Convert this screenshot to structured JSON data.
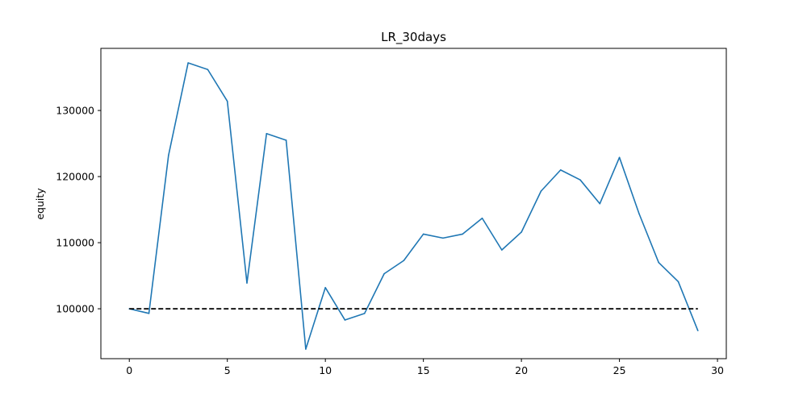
{
  "chart_data": {
    "type": "line",
    "title": "LR_30days",
    "xlabel": "",
    "ylabel": "equity",
    "xlim": [
      -1.45,
      30.45
    ],
    "ylim": [
      92450,
      139400
    ],
    "xticks": [
      0,
      5,
      10,
      15,
      20,
      25,
      30
    ],
    "yticks": [
      100000,
      110000,
      120000,
      130000
    ],
    "grid": false,
    "series": [
      {
        "color": "#1f77b4",
        "x": [
          0,
          1,
          2,
          3,
          4,
          5,
          6,
          7,
          8,
          9,
          10,
          11,
          12,
          13,
          14,
          15,
          16,
          17,
          18,
          19,
          20,
          21,
          22,
          23,
          24,
          25,
          26,
          27,
          28,
          29
        ],
        "values": [
          100000,
          99300,
          123200,
          137200,
          136200,
          131400,
          103900,
          126500,
          125500,
          93900,
          103200,
          98300,
          99300,
          105300,
          107300,
          111300,
          110700,
          111300,
          113700,
          108900,
          111600,
          117800,
          121000,
          119500,
          115900,
          122900,
          114400,
          107000,
          104100,
          96700
        ]
      },
      {
        "color": "#000000",
        "style": "dashed",
        "x": [
          0,
          29
        ],
        "values": [
          100000,
          100000
        ]
      }
    ]
  }
}
